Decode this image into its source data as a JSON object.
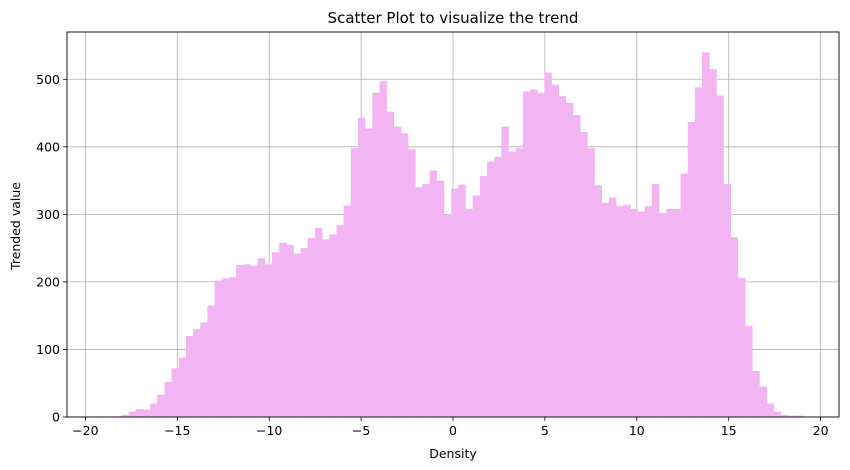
{
  "chart_data": {
    "type": "bar",
    "subtype": "histogram",
    "title": "Scatter Plot to visualize the trend",
    "xlabel": "Density",
    "ylabel": "Trended value",
    "xlim": [
      -21,
      21
    ],
    "ylim": [
      0,
      570
    ],
    "x_ticks": [
      -20,
      -15,
      -10,
      -5,
      0,
      5,
      10,
      15,
      20
    ],
    "y_ticks": [
      0,
      100,
      200,
      300,
      400,
      500
    ],
    "grid": true,
    "bar_color": "#f3b4f3",
    "bin_start": -19.6,
    "bin_width": 0.39,
    "values": [
      1,
      0,
      0,
      1,
      3,
      8,
      12,
      11,
      20,
      33,
      52,
      72,
      88,
      120,
      130,
      140,
      165,
      202,
      205,
      207,
      225,
      226,
      224,
      235,
      226,
      244,
      258,
      255,
      242,
      250,
      265,
      280,
      263,
      270,
      284,
      313,
      398,
      443,
      427,
      480,
      497,
      452,
      430,
      420,
      396,
      340,
      345,
      365,
      350,
      300,
      338,
      344,
      308,
      328,
      357,
      378,
      385,
      430,
      393,
      398,
      482,
      485,
      480,
      510,
      492,
      475,
      465,
      447,
      422,
      398,
      343,
      317,
      325,
      312,
      314,
      308,
      304,
      312,
      345,
      302,
      308,
      308,
      360,
      437,
      488,
      540,
      515,
      476,
      345,
      266,
      206,
      135,
      68,
      45,
      20,
      8,
      3,
      2,
      2
    ]
  }
}
